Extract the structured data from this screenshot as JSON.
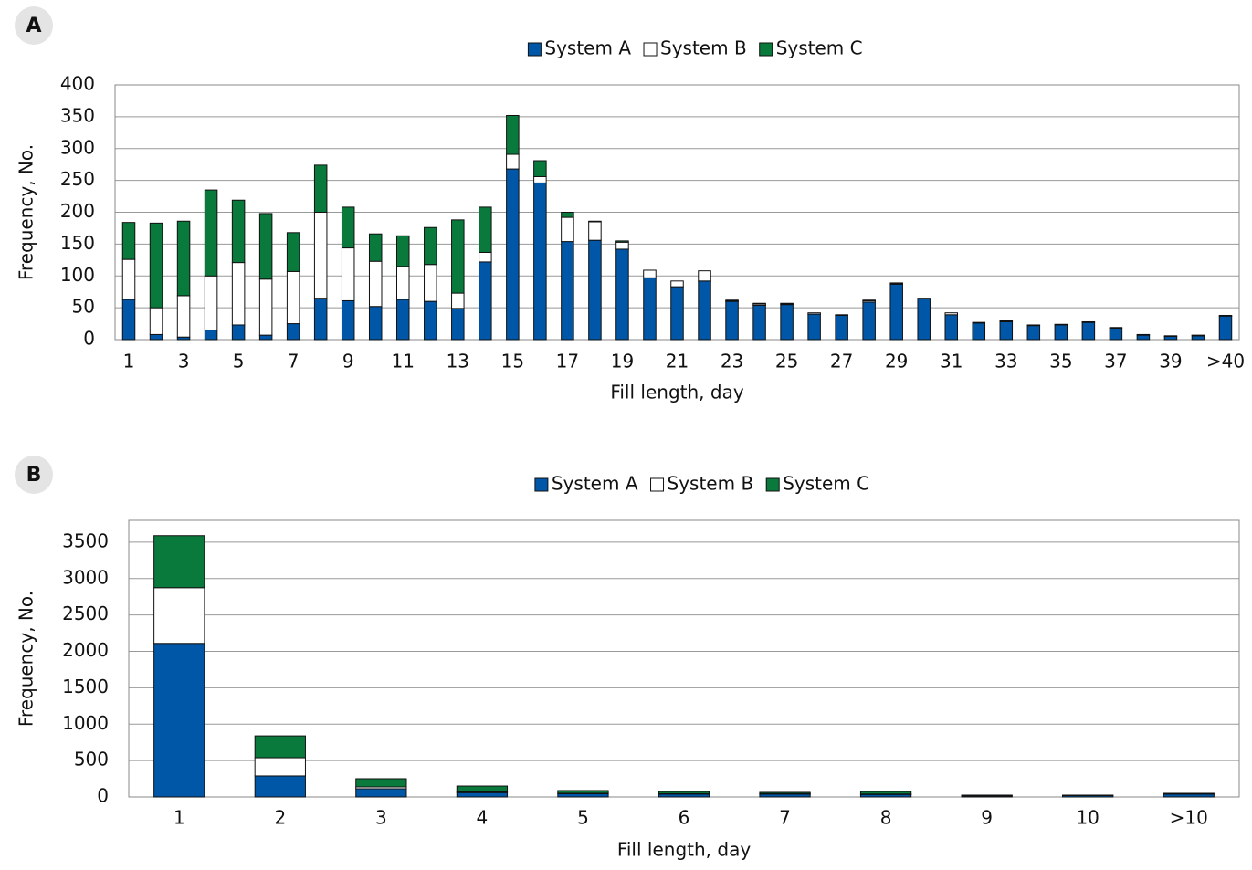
{
  "chart_data": [
    {
      "type": "bar",
      "stacked": true,
      "panel": "A",
      "x_label": "Fill length, day",
      "y_label": "Frequency, No.",
      "categories": [
        "1",
        null,
        "3",
        null,
        "5",
        null,
        "7",
        null,
        "9",
        null,
        "11",
        null,
        "13",
        null,
        "15",
        null,
        "17",
        null,
        "19",
        null,
        "21",
        null,
        "23",
        null,
        "25",
        null,
        "27",
        null,
        "29",
        null,
        "31",
        null,
        "33",
        null,
        "35",
        null,
        "37",
        null,
        "39",
        null,
        ">40"
      ],
      "series": [
        {
          "name": "System A",
          "color": "#0057a8",
          "values": [
            63,
            8,
            4,
            15,
            23,
            7,
            25,
            65,
            61,
            52,
            63,
            60,
            49,
            122,
            268,
            246,
            154,
            156,
            142,
            97,
            83,
            92,
            60,
            54,
            55,
            40,
            38,
            59,
            87,
            64,
            39,
            26,
            28,
            22,
            23,
            27,
            18,
            7,
            5,
            6,
            37
          ]
        },
        {
          "name": "System B",
          "color": "#ffffff",
          "values": [
            63,
            42,
            65,
            85,
            98,
            88,
            82,
            135,
            83,
            71,
            52,
            58,
            24,
            15,
            23,
            10,
            38,
            29,
            11,
            12,
            9,
            16,
            1,
            2,
            1,
            2,
            0,
            2,
            1,
            0,
            3,
            0,
            1,
            0,
            0,
            0,
            0,
            0,
            0,
            0,
            0
          ]
        },
        {
          "name": "System C",
          "color": "#0a7a3c",
          "values": [
            58,
            133,
            117,
            135,
            98,
            103,
            61,
            74,
            64,
            43,
            48,
            58,
            115,
            71,
            61,
            25,
            8,
            1,
            2,
            0,
            0,
            0,
            1,
            1,
            1,
            0,
            1,
            1,
            1,
            1,
            0,
            1,
            1,
            1,
            1,
            1,
            1,
            1,
            1,
            1,
            1
          ]
        }
      ],
      "ylim": [
        0,
        400
      ],
      "yticks": [
        0,
        50,
        100,
        150,
        200,
        250,
        300,
        350,
        400
      ],
      "grid": true,
      "legend": "top"
    },
    {
      "type": "bar",
      "stacked": true,
      "panel": "B",
      "x_label": "Fill length, day",
      "y_label": "Frequency, No.",
      "categories": [
        "1",
        "2",
        "3",
        "4",
        "5",
        "6",
        "7",
        "8",
        "9",
        "10",
        ">10"
      ],
      "series": [
        {
          "name": "System A",
          "color": "#0057a8",
          "values": [
            2110,
            289,
            113,
            60,
            45,
            40,
            40,
            35,
            15,
            20,
            40
          ]
        },
        {
          "name": "System B",
          "color": "#ffffff",
          "values": [
            765,
            250,
            25,
            10,
            5,
            5,
            5,
            5,
            5,
            3,
            5
          ]
        },
        {
          "name": "System C",
          "color": "#0a7a3c",
          "values": [
            715,
            300,
            113,
            80,
            38,
            30,
            18,
            35,
            5,
            2,
            5
          ]
        }
      ],
      "ylim": [
        0,
        3800
      ],
      "yticks": [
        0,
        500,
        1000,
        1500,
        2000,
        2500,
        3000,
        3500
      ],
      "grid": true,
      "legend": "top"
    }
  ]
}
